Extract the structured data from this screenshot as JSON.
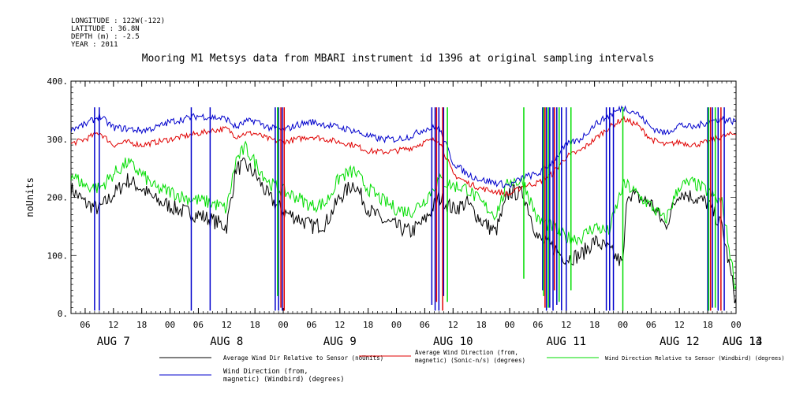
{
  "header": {
    "longitude": "LONGITUDE : 122W(-122)",
    "latitude": "LATITUDE : 36.8N",
    "depth": "DEPTH (m) : -2.5",
    "year": "YEAR : 2011"
  },
  "chart_data": {
    "type": "line",
    "title": "Mooring M1 Metsys data from MBARI instrument id 1396 at original sampling intervals",
    "ylabel": "noUnits",
    "xlabel": "",
    "ylim": [
      0,
      400
    ],
    "y_ticks": [
      "0.",
      "100.",
      "200.",
      "300.",
      "400."
    ],
    "xlim_hours": [
      3,
      144
    ],
    "hour_ticks": [
      "06",
      "12",
      "18",
      "00",
      "06",
      "12",
      "18",
      "00",
      "06",
      "12",
      "18",
      "00",
      "06",
      "12",
      "18",
      "00",
      "06",
      "12",
      "18",
      "00",
      "06",
      "12",
      "18",
      "00",
      "06",
      "12",
      "18",
      "00",
      "06",
      "12",
      "18",
      "00"
    ],
    "date_labels": [
      {
        "label": "AUG  7",
        "hour": 12
      },
      {
        "label": "AUG  8",
        "hour": 36
      },
      {
        "label": "AUG  9",
        "hour": 60
      },
      {
        "label": "AUG 10",
        "hour": 84
      },
      {
        "label": "AUG 11",
        "hour": 108
      },
      {
        "label": "AUG 12",
        "hour": 132
      },
      {
        "label": "AUG 13",
        "hour": 156
      },
      {
        "label": "AUG 14",
        "hour": 168
      }
    ],
    "grid": false,
    "series": [
      {
        "name": "Average Wind Dir Relative to Sensor (noUnits)",
        "color": "#000000",
        "x": [
          3,
          6,
          9,
          12,
          15,
          18,
          21,
          24,
          27,
          30,
          33,
          36,
          38,
          40,
          42,
          45,
          48,
          51,
          54,
          57,
          60,
          63,
          66,
          69,
          72,
          75,
          78,
          81,
          84,
          87,
          90,
          93,
          96,
          99,
          102,
          105,
          108,
          111,
          114,
          117,
          120,
          121,
          123,
          126,
          129,
          132,
          135,
          138,
          141,
          144
        ],
        "y": [
          215,
          190,
          180,
          205,
          230,
          215,
          195,
          185,
          175,
          170,
          160,
          150,
          250,
          255,
          240,
          200,
          175,
          165,
          150,
          155,
          200,
          225,
          180,
          160,
          150,
          140,
          160,
          200,
          180,
          190,
          160,
          140,
          210,
          205,
          130,
          115,
          95,
          100,
          125,
          110,
          85,
          210,
          200,
          190,
          150,
          210,
          200,
          190,
          150,
          20
        ]
      },
      {
        "name": "Average Wind Direction (from, magnetic) (Sonic-n/s) (degrees)",
        "color": "#e00000",
        "x": [
          3,
          6,
          9,
          12,
          15,
          18,
          21,
          24,
          27,
          30,
          33,
          36,
          38,
          40,
          42,
          45,
          48,
          51,
          54,
          57,
          60,
          63,
          66,
          69,
          72,
          75,
          78,
          81,
          84,
          87,
          90,
          93,
          96,
          99,
          102,
          105,
          108,
          111,
          114,
          117,
          120,
          123,
          126,
          129,
          132,
          135,
          138,
          141,
          144
        ],
        "y": [
          292,
          300,
          312,
          290,
          295,
          290,
          295,
          300,
          305,
          310,
          315,
          318,
          305,
          310,
          310,
          300,
          295,
          300,
          305,
          300,
          295,
          290,
          280,
          278,
          280,
          285,
          295,
          300,
          240,
          225,
          215,
          210,
          205,
          220,
          225,
          240,
          270,
          280,
          300,
          320,
          335,
          325,
          300,
          290,
          295,
          290,
          295,
          305,
          310
        ]
      },
      {
        "name": "Wind Direction Relative to Sensor (Windbird) (degrees)",
        "color": "#00dd00",
        "x": [
          3,
          6,
          9,
          12,
          15,
          18,
          21,
          24,
          27,
          30,
          33,
          36,
          38,
          40,
          42,
          45,
          48,
          51,
          54,
          57,
          60,
          63,
          66,
          69,
          72,
          75,
          78,
          81,
          84,
          87,
          90,
          93,
          96,
          99,
          102,
          105,
          108,
          111,
          114,
          117,
          120,
          121,
          123,
          126,
          129,
          132,
          135,
          138,
          141,
          144
        ],
        "y": [
          240,
          220,
          215,
          240,
          260,
          240,
          215,
          210,
          200,
          195,
          190,
          180,
          265,
          285,
          260,
          225,
          210,
          200,
          185,
          190,
          235,
          245,
          215,
          195,
          180,
          175,
          195,
          230,
          220,
          215,
          190,
          170,
          230,
          225,
          160,
          150,
          130,
          130,
          150,
          140,
          220,
          220,
          205,
          185,
          160,
          220,
          225,
          210,
          190,
          40
        ]
      },
      {
        "name": "Wind Direction (from, magnetic) (Windbird) (degrees)",
        "color": "#0000cc",
        "x": [
          3,
          6,
          9,
          12,
          15,
          18,
          21,
          24,
          27,
          30,
          33,
          36,
          38,
          40,
          42,
          45,
          48,
          51,
          54,
          57,
          60,
          63,
          66,
          69,
          72,
          75,
          78,
          81,
          84,
          87,
          90,
          93,
          96,
          99,
          102,
          105,
          108,
          111,
          114,
          117,
          120,
          123,
          126,
          129,
          132,
          135,
          138,
          141,
          144
        ],
        "y": [
          318,
          325,
          340,
          320,
          318,
          315,
          320,
          330,
          335,
          340,
          338,
          335,
          320,
          330,
          332,
          320,
          315,
          325,
          330,
          325,
          320,
          315,
          305,
          300,
          300,
          305,
          318,
          320,
          260,
          240,
          230,
          225,
          220,
          235,
          240,
          260,
          290,
          300,
          325,
          340,
          355,
          345,
          320,
          310,
          325,
          320,
          330,
          335,
          330
        ]
      }
    ],
    "spikes": [
      {
        "series": 3,
        "x": [
          8,
          9,
          28.5,
          32.5,
          46.3,
          47,
          47.8,
          79.5,
          80.2,
          81,
          82,
          103,
          103.8,
          104.5,
          105.2,
          106,
          107,
          108,
          116.5,
          117.2,
          118,
          138,
          139,
          140.2,
          141.5
        ],
        "y": [
          5,
          5,
          5,
          5,
          5,
          5,
          5,
          15,
          5,
          5,
          30,
          40,
          5,
          10,
          5,
          15,
          5,
          5,
          5,
          5,
          5,
          5,
          10,
          5,
          5
        ]
      },
      {
        "series": 1,
        "x": [
          47.5,
          48.2,
          80.5,
          81.8,
          103.5,
          105.5,
          138.6,
          140.8
        ],
        "y": [
          10,
          5,
          20,
          5,
          10,
          40,
          5,
          5
        ]
      },
      {
        "series": 2,
        "x": [
          46.8,
          82.8,
          99,
          103.2,
          104.2,
          106.5,
          109,
          120,
          138.2,
          139.6
        ],
        "y": [
          30,
          20,
          60,
          30,
          10,
          20,
          40,
          5,
          5,
          10
        ]
      }
    ],
    "legend_position": "bottom",
    "legend": [
      {
        "label": "Average Wind Dir Relative to Sensor (noUnits)",
        "color": "#000000"
      },
      {
        "label_line1": "Average Wind Direction (from,",
        "label_line2": "magnetic) (Sonic-n/s) (degrees)",
        "color": "#e00000"
      },
      {
        "label": "Wind Direction Relative to Sensor (Windbird) (degrees)",
        "color": "#00dd00"
      },
      {
        "label_line1": "Wind Direction (from,",
        "label_line2": "magnetic) (Windbird) (degrees)",
        "color": "#0000cc"
      }
    ]
  }
}
